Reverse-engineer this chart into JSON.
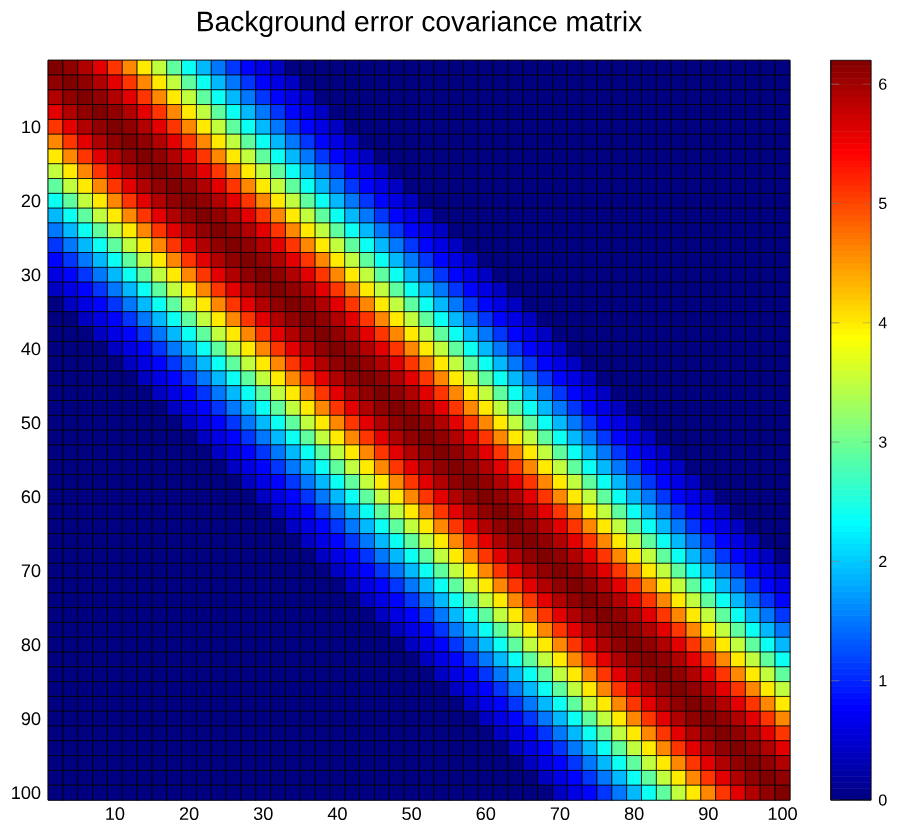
{
  "chart_data": {
    "type": "heatmap",
    "title": "Background error covariance matrix",
    "categories": [
      null,
      null,
      null,
      null,
      "10",
      null,
      null,
      null,
      null,
      "20",
      null,
      null,
      null,
      null,
      "30",
      null,
      null,
      null,
      null,
      "40",
      null,
      null,
      null,
      null,
      "50",
      null,
      null,
      null,
      null,
      "60",
      null,
      null,
      null,
      null,
      "70",
      null,
      null,
      null,
      null,
      "80",
      null,
      null,
      null,
      null,
      "90",
      null,
      null,
      null,
      null,
      "100"
    ],
    "y_categories": [
      null,
      null,
      null,
      null,
      "10",
      null,
      null,
      null,
      null,
      "20",
      null,
      null,
      null,
      null,
      "30",
      null,
      null,
      null,
      null,
      "40",
      null,
      null,
      null,
      null,
      "50",
      null,
      null,
      null,
      null,
      "60",
      null,
      null,
      null,
      null,
      "70",
      null,
      null,
      null,
      null,
      "80",
      null,
      null,
      null,
      null,
      "90",
      null,
      null,
      null,
      null,
      "100"
    ],
    "clim": [
      0,
      6.2
    ],
    "cticks": [
      0,
      1,
      2,
      3,
      4,
      5,
      6
    ],
    "cells": [
      [
        6.2,
        6.1,
        5.9,
        5.6,
        5.1,
        4.6,
        4,
        3.5,
        2.9,
        2.4,
        1.9,
        1.5,
        1.1,
        0.8,
        0.6,
        0.4,
        0,
        0,
        0,
        0,
        0,
        0,
        0,
        0,
        0,
        0,
        0,
        0,
        0,
        0,
        0,
        0,
        0,
        0,
        0,
        0,
        0,
        0,
        0,
        0,
        0,
        0,
        0,
        0,
        0,
        0,
        0,
        0,
        0,
        0
      ],
      [
        6.1,
        6.2,
        6.1,
        5.9,
        5.6,
        5.1,
        4.6,
        4,
        3.5,
        2.9,
        2.4,
        1.9,
        1.5,
        1.1,
        0.8,
        0.6,
        0.4,
        0,
        0,
        0,
        0,
        0,
        0,
        0,
        0,
        0,
        0,
        0,
        0,
        0,
        0,
        0,
        0,
        0,
        0,
        0,
        0,
        0,
        0,
        0,
        0,
        0,
        0,
        0,
        0,
        0,
        0,
        0,
        0,
        0
      ],
      [
        5.9,
        6.1,
        6.2,
        6.1,
        5.9,
        5.6,
        5.1,
        4.6,
        4,
        3.5,
        2.9,
        2.4,
        1.9,
        1.5,
        1.1,
        0.8,
        0.6,
        0.4,
        0,
        0,
        0,
        0,
        0,
        0,
        0,
        0,
        0,
        0,
        0,
        0,
        0,
        0,
        0,
        0,
        0,
        0,
        0,
        0,
        0,
        0,
        0,
        0,
        0,
        0,
        0,
        0,
        0,
        0,
        0,
        0
      ],
      [
        5.6,
        5.9,
        6.1,
        6.2,
        6.1,
        5.9,
        5.6,
        5.1,
        4.6,
        4,
        3.5,
        2.9,
        2.4,
        1.9,
        1.5,
        1.1,
        0.8,
        0.6,
        0.4,
        0,
        0,
        0,
        0,
        0,
        0,
        0,
        0,
        0,
        0,
        0,
        0,
        0,
        0,
        0,
        0,
        0,
        0,
        0,
        0,
        0,
        0,
        0,
        0,
        0,
        0,
        0,
        0,
        0,
        0,
        0
      ],
      [
        5.1,
        5.6,
        5.9,
        6.1,
        6.2,
        6.1,
        5.9,
        5.6,
        5.1,
        4.6,
        4,
        3.5,
        2.9,
        2.4,
        1.9,
        1.5,
        1.1,
        0.8,
        0.6,
        0.4,
        0,
        0,
        0,
        0,
        0,
        0,
        0,
        0,
        0,
        0,
        0,
        0,
        0,
        0,
        0,
        0,
        0,
        0,
        0,
        0,
        0,
        0,
        0,
        0,
        0,
        0,
        0,
        0,
        0,
        0
      ],
      [
        4.6,
        5.1,
        5.6,
        5.9,
        6.1,
        6.2,
        6.1,
        5.9,
        5.6,
        5.1,
        4.6,
        4,
        3.5,
        2.9,
        2.4,
        1.9,
        1.5,
        1.1,
        0.8,
        0.6,
        0.4,
        0,
        0,
        0,
        0,
        0,
        0,
        0,
        0,
        0,
        0,
        0,
        0,
        0,
        0,
        0,
        0,
        0,
        0,
        0,
        0,
        0,
        0,
        0,
        0,
        0,
        0,
        0,
        0,
        0
      ],
      [
        4,
        4.6,
        5.1,
        5.6,
        5.9,
        6.1,
        6.2,
        6.1,
        5.9,
        5.6,
        5.1,
        4.6,
        4,
        3.5,
        2.9,
        2.4,
        1.9,
        1.5,
        1.1,
        0.8,
        0.6,
        0.4,
        0,
        0,
        0,
        0,
        0,
        0,
        0,
        0,
        0,
        0,
        0,
        0,
        0,
        0,
        0,
        0,
        0,
        0,
        0,
        0,
        0,
        0,
        0,
        0,
        0,
        0,
        0,
        0
      ],
      [
        3.5,
        4,
        4.6,
        5.1,
        5.6,
        5.9,
        6.1,
        6.2,
        6.1,
        5.9,
        5.6,
        5.1,
        4.6,
        4,
        3.5,
        2.9,
        2.4,
        1.9,
        1.5,
        1.1,
        0.8,
        0.6,
        0.4,
        0,
        0,
        0,
        0,
        0,
        0,
        0,
        0,
        0,
        0,
        0,
        0,
        0,
        0,
        0,
        0,
        0,
        0,
        0,
        0,
        0,
        0,
        0,
        0,
        0,
        0,
        0
      ],
      [
        2.9,
        3.5,
        4,
        4.6,
        5.1,
        5.6,
        5.9,
        6.1,
        6.2,
        6.1,
        5.9,
        5.6,
        5.1,
        4.6,
        4,
        3.5,
        2.9,
        2.4,
        1.9,
        1.5,
        1.1,
        0.8,
        0.6,
        0.4,
        0,
        0,
        0,
        0,
        0,
        0,
        0,
        0,
        0,
        0,
        0,
        0,
        0,
        0,
        0,
        0,
        0,
        0,
        0,
        0,
        0,
        0,
        0,
        0,
        0,
        0
      ],
      [
        2.4,
        2.9,
        3.5,
        4,
        4.6,
        5.1,
        5.6,
        5.9,
        6.1,
        6.2,
        6.1,
        5.9,
        5.6,
        5.1,
        4.6,
        4,
        3.5,
        2.9,
        2.4,
        1.9,
        1.5,
        1.1,
        0.8,
        0.6,
        0.4,
        0,
        0,
        0,
        0,
        0,
        0,
        0,
        0,
        0,
        0,
        0,
        0,
        0,
        0,
        0,
        0,
        0,
        0,
        0,
        0,
        0,
        0,
        0,
        0,
        0
      ],
      [
        1.9,
        2.4,
        2.9,
        3.5,
        4,
        4.6,
        5.1,
        5.6,
        5.9,
        6.1,
        6.2,
        6.1,
        5.9,
        5.6,
        5.1,
        4.6,
        4,
        3.5,
        2.9,
        2.4,
        1.9,
        1.5,
        1.1,
        0.8,
        0.6,
        0.4,
        0,
        0,
        0,
        0,
        0,
        0,
        0,
        0,
        0,
        0,
        0,
        0,
        0,
        0,
        0,
        0,
        0,
        0,
        0,
        0,
        0,
        0,
        0,
        0
      ],
      [
        1.5,
        1.9,
        2.4,
        2.9,
        3.5,
        4,
        4.6,
        5.1,
        5.6,
        5.9,
        6.1,
        6.2,
        6.1,
        5.9,
        5.6,
        5.1,
        4.6,
        4,
        3.5,
        2.9,
        2.4,
        1.9,
        1.5,
        1.1,
        0.8,
        0.6,
        0.4,
        0,
        0,
        0,
        0,
        0,
        0,
        0,
        0,
        0,
        0,
        0,
        0,
        0,
        0,
        0,
        0,
        0,
        0,
        0,
        0,
        0,
        0,
        0
      ],
      [
        1.1,
        1.5,
        1.9,
        2.4,
        2.9,
        3.5,
        4,
        4.6,
        5.1,
        5.6,
        5.9,
        6.1,
        6.2,
        6.1,
        5.9,
        5.6,
        5.1,
        4.6,
        4,
        3.5,
        2.9,
        2.4,
        1.9,
        1.5,
        1.1,
        0.8,
        0.6,
        0.4,
        0,
        0,
        0,
        0,
        0,
        0,
        0,
        0,
        0,
        0,
        0,
        0,
        0,
        0,
        0,
        0,
        0,
        0,
        0,
        0,
        0,
        0
      ],
      [
        0.8,
        1.1,
        1.5,
        1.9,
        2.4,
        2.9,
        3.5,
        4,
        4.6,
        5.1,
        5.6,
        5.9,
        6.1,
        6.2,
        6.1,
        5.9,
        5.6,
        5.1,
        4.6,
        4,
        3.5,
        2.9,
        2.4,
        1.9,
        1.5,
        1.1,
        0.8,
        0.6,
        0.4,
        0,
        0,
        0,
        0,
        0,
        0,
        0,
        0,
        0,
        0,
        0,
        0,
        0,
        0,
        0,
        0,
        0,
        0,
        0,
        0,
        0
      ],
      [
        0.6,
        0.8,
        1.1,
        1.5,
        1.9,
        2.4,
        2.9,
        3.5,
        4,
        4.6,
        5.1,
        5.6,
        5.9,
        6.1,
        6.2,
        6.1,
        5.9,
        5.6,
        5.1,
        4.6,
        4,
        3.5,
        2.9,
        2.4,
        1.9,
        1.5,
        1.1,
        0.8,
        0.6,
        0.4,
        0,
        0,
        0,
        0,
        0,
        0,
        0,
        0,
        0,
        0,
        0,
        0,
        0,
        0,
        0,
        0,
        0,
        0,
        0,
        0
      ],
      [
        0.4,
        0.6,
        0.8,
        1.1,
        1.5,
        1.9,
        2.4,
        2.9,
        3.5,
        4,
        4.6,
        5.1,
        5.6,
        5.9,
        6.1,
        6.2,
        6.1,
        5.9,
        5.6,
        5.1,
        4.6,
        4,
        3.5,
        2.9,
        2.4,
        1.9,
        1.5,
        1.1,
        0.8,
        0.6,
        0.4,
        0,
        0,
        0,
        0,
        0,
        0,
        0,
        0,
        0,
        0,
        0,
        0,
        0,
        0,
        0,
        0,
        0,
        0,
        0
      ],
      [
        0,
        0.4,
        0.6,
        0.8,
        1.1,
        1.5,
        1.9,
        2.4,
        2.9,
        3.5,
        4,
        4.6,
        5.1,
        5.6,
        5.9,
        6.1,
        6.2,
        6.1,
        5.9,
        5.6,
        5.1,
        4.6,
        4,
        3.5,
        2.9,
        2.4,
        1.9,
        1.5,
        1.1,
        0.8,
        0.6,
        0.4,
        0,
        0,
        0,
        0,
        0,
        0,
        0,
        0,
        0,
        0,
        0,
        0,
        0,
        0,
        0,
        0,
        0,
        0
      ],
      [
        0,
        0,
        0.4,
        0.6,
        0.8,
        1.1,
        1.5,
        1.9,
        2.4,
        2.9,
        3.5,
        4,
        4.6,
        5.1,
        5.6,
        5.9,
        6.1,
        6.2,
        6.1,
        5.9,
        5.6,
        5.1,
        4.6,
        4,
        3.5,
        2.9,
        2.4,
        1.9,
        1.5,
        1.1,
        0.8,
        0.6,
        0.4,
        0,
        0,
        0,
        0,
        0,
        0,
        0,
        0,
        0,
        0,
        0,
        0,
        0,
        0,
        0,
        0,
        0
      ],
      [
        0,
        0,
        0,
        0.4,
        0.6,
        0.8,
        1.1,
        1.5,
        1.9,
        2.4,
        2.9,
        3.5,
        4,
        4.6,
        5.1,
        5.6,
        5.9,
        6.1,
        6.2,
        6.1,
        5.9,
        5.6,
        5.1,
        4.6,
        4,
        3.5,
        2.9,
        2.4,
        1.9,
        1.5,
        1.1,
        0.8,
        0.6,
        0.4,
        0,
        0,
        0,
        0,
        0,
        0,
        0,
        0,
        0,
        0,
        0,
        0,
        0,
        0,
        0,
        0
      ],
      [
        0,
        0,
        0,
        0,
        0.4,
        0.6,
        0.8,
        1.1,
        1.5,
        1.9,
        2.4,
        2.9,
        3.5,
        4,
        4.6,
        5.1,
        5.6,
        5.9,
        6.1,
        6.2,
        6.1,
        5.9,
        5.6,
        5.1,
        4.6,
        4,
        3.5,
        2.9,
        2.4,
        1.9,
        1.5,
        1.1,
        0.8,
        0.6,
        0.4,
        0,
        0,
        0,
        0,
        0,
        0,
        0,
        0,
        0,
        0,
        0,
        0,
        0,
        0,
        0
      ],
      [
        0,
        0,
        0,
        0,
        0,
        0.4,
        0.6,
        0.8,
        1.1,
        1.5,
        1.9,
        2.4,
        2.9,
        3.5,
        4,
        4.6,
        5.1,
        5.6,
        5.9,
        6.1,
        6.2,
        6.1,
        5.9,
        5.6,
        5.1,
        4.6,
        4,
        3.5,
        2.9,
        2.4,
        1.9,
        1.5,
        1.1,
        0.8,
        0.6,
        0.4,
        0,
        0,
        0,
        0,
        0,
        0,
        0,
        0,
        0,
        0,
        0,
        0,
        0,
        0
      ],
      [
        0,
        0,
        0,
        0,
        0,
        0,
        0.4,
        0.6,
        0.8,
        1.1,
        1.5,
        1.9,
        2.4,
        2.9,
        3.5,
        4,
        4.6,
        5.1,
        5.6,
        5.9,
        6.1,
        6.2,
        6.1,
        5.9,
        5.6,
        5.1,
        4.6,
        4,
        3.5,
        2.9,
        2.4,
        1.9,
        1.5,
        1.1,
        0.8,
        0.6,
        0.4,
        0,
        0,
        0,
        0,
        0,
        0,
        0,
        0,
        0,
        0,
        0,
        0,
        0
      ],
      [
        0,
        0,
        0,
        0,
        0,
        0,
        0,
        0.4,
        0.6,
        0.8,
        1.1,
        1.5,
        1.9,
        2.4,
        2.9,
        3.5,
        4,
        4.6,
        5.1,
        5.6,
        5.9,
        6.1,
        6.2,
        6.1,
        5.9,
        5.6,
        5.1,
        4.6,
        4,
        3.5,
        2.9,
        2.4,
        1.9,
        1.5,
        1.1,
        0.8,
        0.6,
        0.4,
        0,
        0,
        0,
        0,
        0,
        0,
        0,
        0,
        0,
        0,
        0,
        0
      ],
      [
        0,
        0,
        0,
        0,
        0,
        0,
        0,
        0,
        0.4,
        0.6,
        0.8,
        1.1,
        1.5,
        1.9,
        2.4,
        2.9,
        3.5,
        4,
        4.6,
        5.1,
        5.6,
        5.9,
        6.1,
        6.2,
        6.1,
        5.9,
        5.6,
        5.1,
        4.6,
        4,
        3.5,
        2.9,
        2.4,
        1.9,
        1.5,
        1.1,
        0.8,
        0.6,
        0.4,
        0,
        0,
        0,
        0,
        0,
        0,
        0,
        0,
        0,
        0,
        0
      ],
      [
        0,
        0,
        0,
        0,
        0,
        0,
        0,
        0,
        0,
        0.4,
        0.6,
        0.8,
        1.1,
        1.5,
        1.9,
        2.4,
        2.9,
        3.5,
        4,
        4.6,
        5.1,
        5.6,
        5.9,
        6.1,
        6.2,
        6.1,
        5.9,
        5.6,
        5.1,
        4.6,
        4,
        3.5,
        2.9,
        2.4,
        1.9,
        1.5,
        1.1,
        0.8,
        0.6,
        0.4,
        0,
        0,
        0,
        0,
        0,
        0,
        0,
        0,
        0,
        0
      ],
      [
        0,
        0,
        0,
        0,
        0,
        0,
        0,
        0,
        0,
        0,
        0.4,
        0.6,
        0.8,
        1.1,
        1.5,
        1.9,
        2.4,
        2.9,
        3.5,
        4,
        4.6,
        5.1,
        5.6,
        5.9,
        6.1,
        6.2,
        6.1,
        5.9,
        5.6,
        5.1,
        4.6,
        4,
        3.5,
        2.9,
        2.4,
        1.9,
        1.5,
        1.1,
        0.8,
        0.6,
        0.4,
        0,
        0,
        0,
        0,
        0,
        0,
        0,
        0,
        0
      ],
      [
        0,
        0,
        0,
        0,
        0,
        0,
        0,
        0,
        0,
        0,
        0,
        0.4,
        0.6,
        0.8,
        1.1,
        1.5,
        1.9,
        2.4,
        2.9,
        3.5,
        4,
        4.6,
        5.1,
        5.6,
        5.9,
        6.1,
        6.2,
        6.1,
        5.9,
        5.6,
        5.1,
        4.6,
        4,
        3.5,
        2.9,
        2.4,
        1.9,
        1.5,
        1.1,
        0.8,
        0.6,
        0.4,
        0,
        0,
        0,
        0,
        0,
        0,
        0,
        0
      ],
      [
        0,
        0,
        0,
        0,
        0,
        0,
        0,
        0,
        0,
        0,
        0,
        0,
        0.4,
        0.6,
        0.8,
        1.1,
        1.5,
        1.9,
        2.4,
        2.9,
        3.5,
        4,
        4.6,
        5.1,
        5.6,
        5.9,
        6.1,
        6.2,
        6.1,
        5.9,
        5.6,
        5.1,
        4.6,
        4,
        3.5,
        2.9,
        2.4,
        1.9,
        1.5,
        1.1,
        0.8,
        0.6,
        0.4,
        0,
        0,
        0,
        0,
        0,
        0,
        0
      ],
      [
        0,
        0,
        0,
        0,
        0,
        0,
        0,
        0,
        0,
        0,
        0,
        0,
        0,
        0.4,
        0.6,
        0.8,
        1.1,
        1.5,
        1.9,
        2.4,
        2.9,
        3.5,
        4,
        4.6,
        5.1,
        5.6,
        5.9,
        6.1,
        6.2,
        6.1,
        5.9,
        5.6,
        5.1,
        4.6,
        4,
        3.5,
        2.9,
        2.4,
        1.9,
        1.5,
        1.1,
        0.8,
        0.6,
        0.4,
        0,
        0,
        0,
        0,
        0,
        0
      ],
      [
        0,
        0,
        0,
        0,
        0,
        0,
        0,
        0,
        0,
        0,
        0,
        0,
        0,
        0,
        0.4,
        0.6,
        0.8,
        1.1,
        1.5,
        1.9,
        2.4,
        2.9,
        3.5,
        4,
        4.6,
        5.1,
        5.6,
        5.9,
        6.1,
        6.2,
        6.1,
        5.9,
        5.6,
        5.1,
        4.6,
        4,
        3.5,
        2.9,
        2.4,
        1.9,
        1.5,
        1.1,
        0.8,
        0.6,
        0.4,
        0,
        0,
        0,
        0,
        0
      ],
      [
        0,
        0,
        0,
        0,
        0,
        0,
        0,
        0,
        0,
        0,
        0,
        0,
        0,
        0,
        0,
        0.4,
        0.6,
        0.8,
        1.1,
        1.5,
        1.9,
        2.4,
        2.9,
        3.5,
        4,
        4.6,
        5.1,
        5.6,
        5.9,
        6.1,
        6.2,
        6.1,
        5.9,
        5.6,
        5.1,
        4.6,
        4,
        3.5,
        2.9,
        2.4,
        1.9,
        1.5,
        1.1,
        0.8,
        0.6,
        0.4,
        0,
        0,
        0,
        0
      ],
      [
        0,
        0,
        0,
        0,
        0,
        0,
        0,
        0,
        0,
        0,
        0,
        0,
        0,
        0,
        0,
        0,
        0.4,
        0.6,
        0.8,
        1.1,
        1.5,
        1.9,
        2.4,
        2.9,
        3.5,
        4,
        4.6,
        5.1,
        5.6,
        5.9,
        6.1,
        6.2,
        6.1,
        5.9,
        5.6,
        5.1,
        4.6,
        4,
        3.5,
        2.9,
        2.4,
        1.9,
        1.5,
        1.1,
        0.8,
        0.6,
        0.4,
        0,
        0,
        0
      ],
      [
        0,
        0,
        0,
        0,
        0,
        0,
        0,
        0,
        0,
        0,
        0,
        0,
        0,
        0,
        0,
        0,
        0,
        0.4,
        0.6,
        0.8,
        1.1,
        1.5,
        1.9,
        2.4,
        2.9,
        3.5,
        4,
        4.6,
        5.1,
        5.6,
        5.9,
        6.1,
        6.2,
        6.1,
        5.9,
        5.6,
        5.1,
        4.6,
        4,
        3.5,
        2.9,
        2.4,
        1.9,
        1.5,
        1.1,
        0.8,
        0.6,
        0.4,
        0,
        0
      ],
      [
        0,
        0,
        0,
        0,
        0,
        0,
        0,
        0,
        0,
        0,
        0,
        0,
        0,
        0,
        0,
        0,
        0,
        0,
        0.4,
        0.6,
        0.8,
        1.1,
        1.5,
        1.9,
        2.4,
        2.9,
        3.5,
        4,
        4.6,
        5.1,
        5.6,
        5.9,
        6.1,
        6.2,
        6.1,
        5.9,
        5.6,
        5.1,
        4.6,
        4,
        3.5,
        2.9,
        2.4,
        1.9,
        1.5,
        1.1,
        0.8,
        0.6,
        0.4,
        0
      ],
      [
        0,
        0,
        0,
        0,
        0,
        0,
        0,
        0,
        0,
        0,
        0,
        0,
        0,
        0,
        0,
        0,
        0,
        0,
        0,
        0.4,
        0.6,
        0.8,
        1.1,
        1.5,
        1.9,
        2.4,
        2.9,
        3.5,
        4,
        4.6,
        5.1,
        5.6,
        5.9,
        6.1,
        6.2,
        6.1,
        5.9,
        5.6,
        5.1,
        4.6,
        4,
        3.5,
        2.9,
        2.4,
        1.9,
        1.5,
        1.1,
        0.8,
        0.6,
        0.4
      ],
      [
        0,
        0,
        0,
        0,
        0,
        0,
        0,
        0,
        0,
        0,
        0,
        0,
        0,
        0,
        0,
        0,
        0,
        0,
        0,
        0,
        0.4,
        0.6,
        0.8,
        1.1,
        1.5,
        1.9,
        2.4,
        2.9,
        3.5,
        4,
        4.6,
        5.1,
        5.6,
        5.9,
        6.1,
        6.2,
        6.1,
        5.9,
        5.6,
        5.1,
        4.6,
        4,
        3.5,
        2.9,
        2.4,
        1.9,
        1.5,
        1.1,
        0.8,
        0.6
      ],
      [
        0,
        0,
        0,
        0,
        0,
        0,
        0,
        0,
        0,
        0,
        0,
        0,
        0,
        0,
        0,
        0,
        0,
        0,
        0,
        0,
        0,
        0.4,
        0.6,
        0.8,
        1.1,
        1.5,
        1.9,
        2.4,
        2.9,
        3.5,
        4,
        4.6,
        5.1,
        5.6,
        5.9,
        6.1,
        6.2,
        6.1,
        5.9,
        5.6,
        5.1,
        4.6,
        4,
        3.5,
        2.9,
        2.4,
        1.9,
        1.5,
        1.1,
        0.8
      ],
      [
        0,
        0,
        0,
        0,
        0,
        0,
        0,
        0,
        0,
        0,
        0,
        0,
        0,
        0,
        0,
        0,
        0,
        0,
        0,
        0,
        0,
        0,
        0.4,
        0.6,
        0.8,
        1.1,
        1.5,
        1.9,
        2.4,
        2.9,
        3.5,
        4,
        4.6,
        5.1,
        5.6,
        5.9,
        6.1,
        6.2,
        6.1,
        5.9,
        5.6,
        5.1,
        4.6,
        4,
        3.5,
        2.9,
        2.4,
        1.9,
        1.5,
        1.1
      ],
      [
        0,
        0,
        0,
        0,
        0,
        0,
        0,
        0,
        0,
        0,
        0,
        0,
        0,
        0,
        0,
        0,
        0,
        0,
        0,
        0,
        0,
        0,
        0,
        0.4,
        0.6,
        0.8,
        1.1,
        1.5,
        1.9,
        2.4,
        2.9,
        3.5,
        4,
        4.6,
        5.1,
        5.6,
        5.9,
        6.1,
        6.2,
        6.1,
        5.9,
        5.6,
        5.1,
        4.6,
        4,
        3.5,
        2.9,
        2.4,
        1.9,
        1.5
      ],
      [
        0,
        0,
        0,
        0,
        0,
        0,
        0,
        0,
        0,
        0,
        0,
        0,
        0,
        0,
        0,
        0,
        0,
        0,
        0,
        0,
        0,
        0,
        0,
        0,
        0.4,
        0.6,
        0.8,
        1.1,
        1.5,
        1.9,
        2.4,
        2.9,
        3.5,
        4,
        4.6,
        5.1,
        5.6,
        5.9,
        6.1,
        6.2,
        6.1,
        5.9,
        5.6,
        5.1,
        4.6,
        4,
        3.5,
        2.9,
        2.4,
        1.9
      ],
      [
        0,
        0,
        0,
        0,
        0,
        0,
        0,
        0,
        0,
        0,
        0,
        0,
        0,
        0,
        0,
        0,
        0,
        0,
        0,
        0,
        0,
        0,
        0,
        0,
        0,
        0.4,
        0.6,
        0.8,
        1.1,
        1.5,
        1.9,
        2.4,
        2.9,
        3.5,
        4,
        4.6,
        5.1,
        5.6,
        5.9,
        6.1,
        6.2,
        6.1,
        5.9,
        5.6,
        5.1,
        4.6,
        4,
        3.5,
        2.9,
        2.4
      ],
      [
        0,
        0,
        0,
        0,
        0,
        0,
        0,
        0,
        0,
        0,
        0,
        0,
        0,
        0,
        0,
        0,
        0,
        0,
        0,
        0,
        0,
        0,
        0,
        0,
        0,
        0,
        0.4,
        0.6,
        0.8,
        1.1,
        1.5,
        1.9,
        2.4,
        2.9,
        3.5,
        4,
        4.6,
        5.1,
        5.6,
        5.9,
        6.1,
        6.2,
        6.1,
        5.9,
        5.6,
        5.1,
        4.6,
        4,
        3.5,
        2.9
      ],
      [
        0,
        0,
        0,
        0,
        0,
        0,
        0,
        0,
        0,
        0,
        0,
        0,
        0,
        0,
        0,
        0,
        0,
        0,
        0,
        0,
        0,
        0,
        0,
        0,
        0,
        0,
        0,
        0.4,
        0.6,
        0.8,
        1.1,
        1.5,
        1.9,
        2.4,
        2.9,
        3.5,
        4,
        4.6,
        5.1,
        5.6,
        5.9,
        6.1,
        6.2,
        6.1,
        5.9,
        5.6,
        5.1,
        4.6,
        4,
        3.5
      ],
      [
        0,
        0,
        0,
        0,
        0,
        0,
        0,
        0,
        0,
        0,
        0,
        0,
        0,
        0,
        0,
        0,
        0,
        0,
        0,
        0,
        0,
        0,
        0,
        0,
        0,
        0,
        0,
        0,
        0.4,
        0.6,
        0.8,
        1.1,
        1.5,
        1.9,
        2.4,
        2.9,
        3.5,
        4,
        4.6,
        5.1,
        5.6,
        5.9,
        6.1,
        6.2,
        6.1,
        5.9,
        5.6,
        5.1,
        4.6,
        4
      ],
      [
        0,
        0,
        0,
        0,
        0,
        0,
        0,
        0,
        0,
        0,
        0,
        0,
        0,
        0,
        0,
        0,
        0,
        0,
        0,
        0,
        0,
        0,
        0,
        0,
        0,
        0,
        0,
        0,
        0,
        0.4,
        0.6,
        0.8,
        1.1,
        1.5,
        1.9,
        2.4,
        2.9,
        3.5,
        4,
        4.6,
        5.1,
        5.6,
        5.9,
        6.1,
        6.2,
        6.1,
        5.9,
        5.6,
        5.1,
        4.6
      ],
      [
        0,
        0,
        0,
        0,
        0,
        0,
        0,
        0,
        0,
        0,
        0,
        0,
        0,
        0,
        0,
        0,
        0,
        0,
        0,
        0,
        0,
        0,
        0,
        0,
        0,
        0,
        0,
        0,
        0,
        0,
        0.4,
        0.6,
        0.8,
        1.1,
        1.5,
        1.9,
        2.4,
        2.9,
        3.5,
        4,
        4.6,
        5.1,
        5.6,
        5.9,
        6.1,
        6.2,
        6.1,
        5.9,
        5.6,
        5.1
      ],
      [
        0,
        0,
        0,
        0,
        0,
        0,
        0,
        0,
        0,
        0,
        0,
        0,
        0,
        0,
        0,
        0,
        0,
        0,
        0,
        0,
        0,
        0,
        0,
        0,
        0,
        0,
        0,
        0,
        0,
        0,
        0,
        0.4,
        0.6,
        0.8,
        1.1,
        1.5,
        1.9,
        2.4,
        2.9,
        3.5,
        4,
        4.6,
        5.1,
        5.6,
        5.9,
        6.1,
        6.2,
        6.1,
        5.9,
        5.6
      ],
      [
        0,
        0,
        0,
        0,
        0,
        0,
        0,
        0,
        0,
        0,
        0,
        0,
        0,
        0,
        0,
        0,
        0,
        0,
        0,
        0,
        0,
        0,
        0,
        0,
        0,
        0,
        0,
        0,
        0,
        0,
        0,
        0,
        0.4,
        0.6,
        0.8,
        1.1,
        1.5,
        1.9,
        2.4,
        2.9,
        3.5,
        4,
        4.6,
        5.1,
        5.6,
        5.9,
        6.1,
        6.2,
        6.1,
        5.9
      ],
      [
        0,
        0,
        0,
        0,
        0,
        0,
        0,
        0,
        0,
        0,
        0,
        0,
        0,
        0,
        0,
        0,
        0,
        0,
        0,
        0,
        0,
        0,
        0,
        0,
        0,
        0,
        0,
        0,
        0,
        0,
        0,
        0,
        0,
        0.4,
        0.6,
        0.8,
        1.1,
        1.5,
        1.9,
        2.4,
        2.9,
        3.5,
        4,
        4.6,
        5.1,
        5.6,
        5.9,
        6.1,
        6.2,
        6.1
      ],
      [
        0,
        0,
        0,
        0,
        0,
        0,
        0,
        0,
        0,
        0,
        0,
        0,
        0,
        0,
        0,
        0,
        0,
        0,
        0,
        0,
        0,
        0,
        0,
        0,
        0,
        0,
        0,
        0,
        0,
        0,
        0,
        0,
        0,
        0,
        0.4,
        0.6,
        0.8,
        1.1,
        1.5,
        1.9,
        2.4,
        2.9,
        3.5,
        4,
        4.6,
        5.1,
        5.6,
        5.9,
        6.1,
        6.2
      ]
    ]
  }
}
